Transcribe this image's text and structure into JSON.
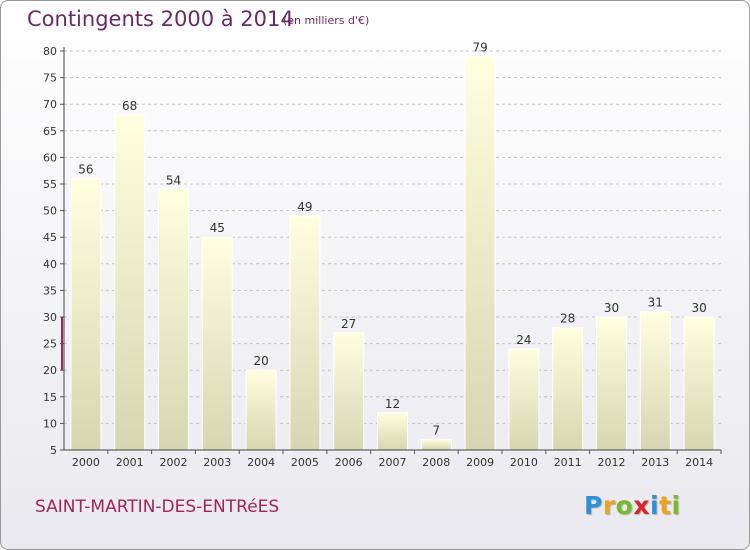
{
  "header": {
    "title": "Contingents 2000 à 2014",
    "subtitle": "(en milliers d'€)"
  },
  "footer": {
    "place": "SAINT-MARTIN-DES-ENTRéES",
    "brand": {
      "text": "Proxiti",
      "letters": [
        "P",
        "r",
        "o",
        "x",
        "i",
        "t",
        "i"
      ],
      "letter_colors": [
        "#2f8fd8",
        "#f0a21e",
        "#7ab829",
        "#d6272c",
        "#2f8fd8",
        "#f0a21e",
        "#7ab829"
      ]
    }
  },
  "colors": {
    "title": "#6b2a62",
    "bar_top": "#ffffe0",
    "bar_bottom": "#d6d6b2",
    "bar_edge": "#ffffff",
    "axis_accent": "#a3245a",
    "gridline": "#c4c4c4"
  },
  "chart_data": {
    "type": "bar",
    "title": "Contingents 2000 à 2014",
    "subtitle": "(en milliers d'€)",
    "categories": [
      "2000",
      "2001",
      "2002",
      "2003",
      "2004",
      "2005",
      "2006",
      "2007",
      "2008",
      "2009",
      "2010",
      "2011",
      "2012",
      "2013",
      "2014"
    ],
    "values": [
      56,
      68,
      54,
      45,
      20,
      49,
      27,
      12,
      7,
      79,
      24,
      28,
      30,
      31,
      30
    ],
    "ylim": [
      5,
      80
    ],
    "yticks": [
      5,
      10,
      15,
      20,
      25,
      30,
      35,
      40,
      45,
      50,
      55,
      60,
      65,
      70,
      75,
      80
    ],
    "grid": "horizontal dashed",
    "data_labels": true
  }
}
